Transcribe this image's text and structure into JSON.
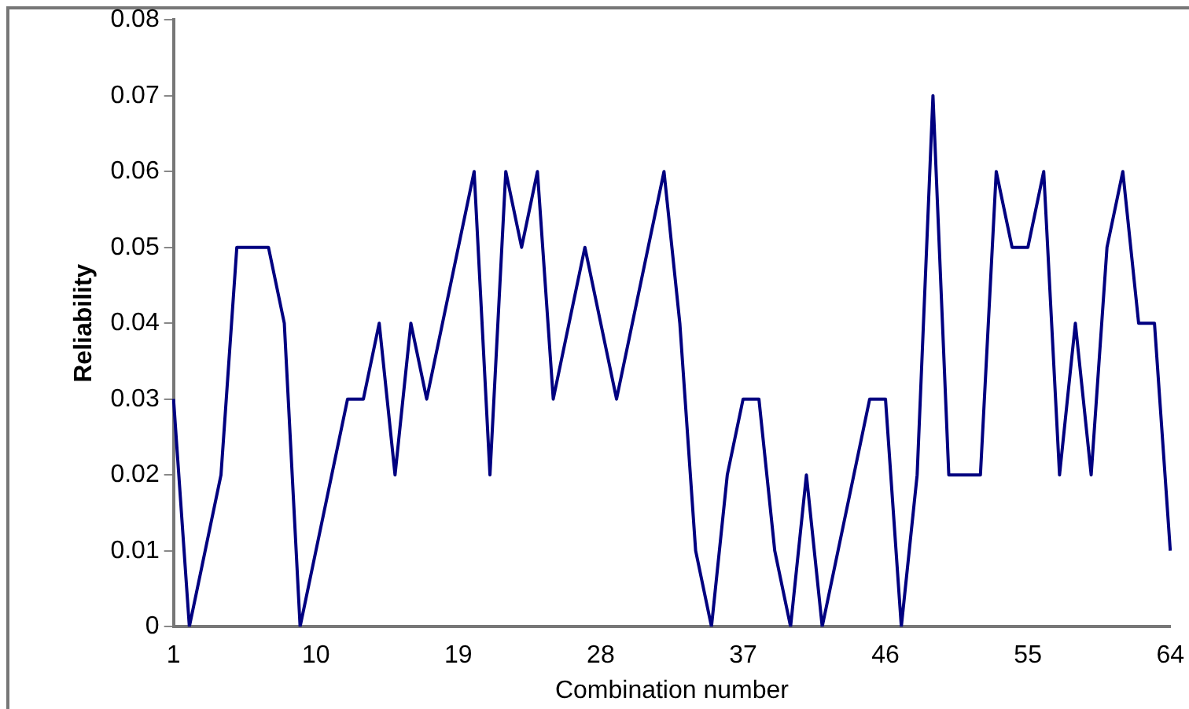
{
  "chart_data": {
    "type": "line",
    "xlabel": "Combination number",
    "ylabel": "Reliability",
    "categories": [
      "1",
      null,
      null,
      null,
      null,
      null,
      null,
      null,
      null,
      "10",
      null,
      null,
      null,
      null,
      null,
      null,
      null,
      null,
      "19",
      null,
      null,
      null,
      null,
      null,
      null,
      null,
      null,
      "28",
      null,
      null,
      null,
      null,
      null,
      null,
      null,
      null,
      "37",
      null,
      null,
      null,
      null,
      null,
      null,
      null,
      null,
      "46",
      null,
      null,
      null,
      null,
      null,
      null,
      null,
      null,
      "55",
      null,
      null,
      null,
      null,
      null,
      null,
      null,
      null,
      "64"
    ],
    "series": [
      {
        "color": "#000080",
        "values": [
          0.03,
          0,
          0.01,
          0.02,
          0.05,
          0.05,
          0.05,
          0.04,
          0,
          0.01,
          0.02,
          0.03,
          0.03,
          0.04,
          0.02,
          0.04,
          0.03,
          0.04,
          0.05,
          0.06,
          0.02,
          0.06,
          0.05,
          0.06,
          0.03,
          0.04,
          0.05,
          0.04,
          0.03,
          0.04,
          0.05,
          0.06,
          0.04,
          0.01,
          0,
          0.02,
          0.03,
          0.03,
          0.01,
          0,
          0.02,
          0,
          0.01,
          0.02,
          0.03,
          0.03,
          0,
          0.02,
          0.07,
          0.02,
          0.02,
          0.02,
          0.06,
          0.05,
          0.05,
          0.06,
          0.02,
          0.04,
          0.02,
          0.05,
          0.06,
          0.04,
          0.04,
          0.01
        ]
      }
    ],
    "ylim": [
      0,
      0.08
    ],
    "yticks": [
      0,
      0.01,
      0.02,
      0.03,
      0.04,
      0.05,
      0.06,
      0.07,
      0.08
    ],
    "grid": false,
    "legend": false,
    "marker": "none",
    "line_style": "solid"
  }
}
